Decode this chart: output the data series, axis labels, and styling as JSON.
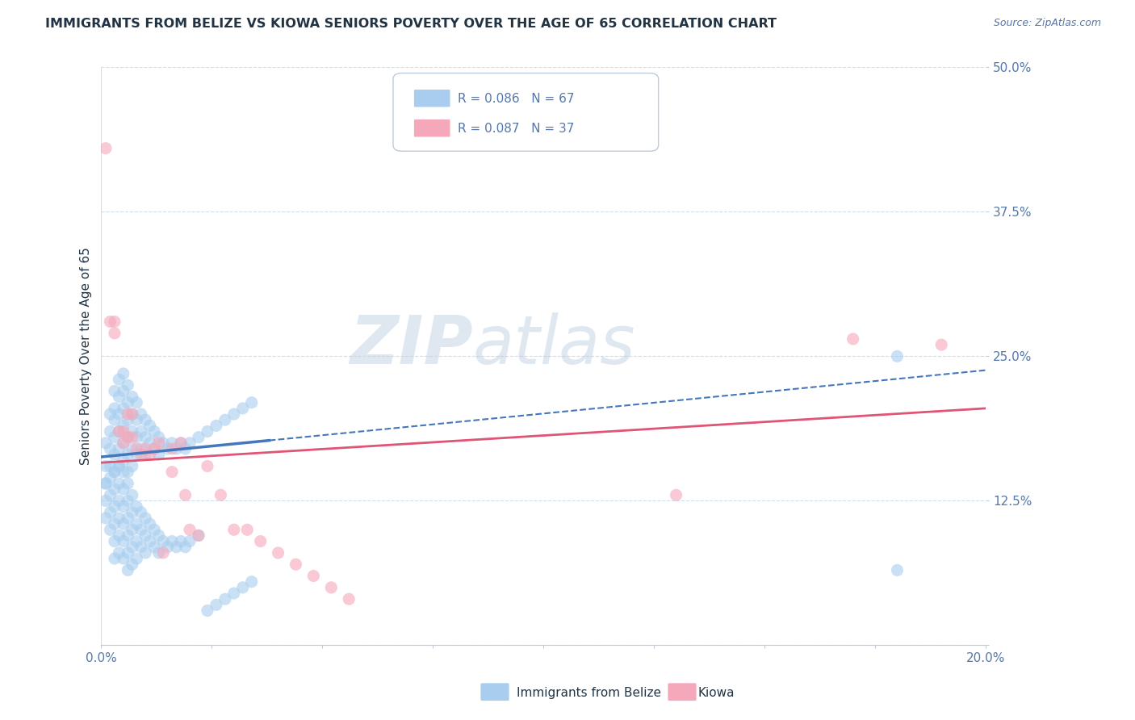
{
  "title": "IMMIGRANTS FROM BELIZE VS KIOWA SENIORS POVERTY OVER THE AGE OF 65 CORRELATION CHART",
  "source": "Source: ZipAtlas.com",
  "ylabel": "Seniors Poverty Over the Age of 65",
  "xlim": [
    0.0,
    0.2
  ],
  "ylim": [
    0.0,
    0.5
  ],
  "xticks": [
    0.0,
    0.025,
    0.05,
    0.075,
    0.1,
    0.125,
    0.15,
    0.175,
    0.2
  ],
  "xticklabels": [
    "0.0%",
    "",
    "",
    "",
    "",
    "",
    "",
    "",
    "20.0%"
  ],
  "yticks": [
    0.0,
    0.125,
    0.25,
    0.375,
    0.5
  ],
  "yticklabels": [
    "",
    "12.5%",
    "25.0%",
    "37.5%",
    "50.0%"
  ],
  "series1_label": "Immigrants from Belize",
  "series1_R": "R = 0.086",
  "series1_N": "N = 67",
  "series1_color": "#A8CDEF",
  "series1_line_color": "#4477BB",
  "series2_label": "Kiowa",
  "series2_R": "R = 0.087",
  "series2_N": "N = 37",
  "series2_color": "#F5A8BA",
  "series2_line_color": "#E05575",
  "watermark_top": "ZIP",
  "watermark_bot": "atlas",
  "watermark_color": "#C8D8E8",
  "title_color": "#223344",
  "axis_color": "#5577AA",
  "grid_color": "#CCDDEE",
  "series1_x": [
    0.001,
    0.001,
    0.001,
    0.002,
    0.002,
    0.002,
    0.002,
    0.003,
    0.003,
    0.003,
    0.003,
    0.003,
    0.003,
    0.004,
    0.004,
    0.004,
    0.004,
    0.004,
    0.004,
    0.005,
    0.005,
    0.005,
    0.005,
    0.005,
    0.005,
    0.006,
    0.006,
    0.006,
    0.006,
    0.006,
    0.006,
    0.007,
    0.007,
    0.007,
    0.007,
    0.007,
    0.008,
    0.008,
    0.008,
    0.008,
    0.009,
    0.009,
    0.009,
    0.01,
    0.01,
    0.01,
    0.011,
    0.011,
    0.012,
    0.012,
    0.013,
    0.013,
    0.014,
    0.015,
    0.016,
    0.017,
    0.018,
    0.019,
    0.02,
    0.022,
    0.024,
    0.026,
    0.028,
    0.03,
    0.032,
    0.034,
    0.18
  ],
  "series1_y": [
    0.175,
    0.155,
    0.14,
    0.2,
    0.185,
    0.17,
    0.155,
    0.22,
    0.205,
    0.195,
    0.18,
    0.165,
    0.15,
    0.23,
    0.215,
    0.2,
    0.185,
    0.17,
    0.155,
    0.235,
    0.22,
    0.205,
    0.19,
    0.175,
    0.16,
    0.225,
    0.21,
    0.195,
    0.18,
    0.165,
    0.15,
    0.215,
    0.2,
    0.185,
    0.17,
    0.155,
    0.21,
    0.195,
    0.18,
    0.165,
    0.2,
    0.185,
    0.17,
    0.195,
    0.18,
    0.165,
    0.19,
    0.175,
    0.185,
    0.17,
    0.18,
    0.165,
    0.175,
    0.17,
    0.175,
    0.17,
    0.175,
    0.17,
    0.175,
    0.18,
    0.185,
    0.19,
    0.195,
    0.2,
    0.205,
    0.21,
    0.25
  ],
  "series1_y_low": [
    0.14,
    0.125,
    0.11,
    0.145,
    0.13,
    0.115,
    0.1,
    0.15,
    0.135,
    0.12,
    0.105,
    0.09,
    0.075,
    0.155,
    0.14,
    0.125,
    0.11,
    0.095,
    0.08,
    0.15,
    0.135,
    0.12,
    0.105,
    0.09,
    0.075,
    0.14,
    0.125,
    0.11,
    0.095,
    0.08,
    0.065,
    0.13,
    0.115,
    0.1,
    0.085,
    0.07,
    0.12,
    0.105,
    0.09,
    0.075,
    0.115,
    0.1,
    0.085,
    0.11,
    0.095,
    0.08,
    0.105,
    0.09,
    0.1,
    0.085,
    0.095,
    0.08,
    0.09,
    0.085,
    0.09,
    0.085,
    0.09,
    0.085,
    0.09,
    0.095,
    0.03,
    0.035,
    0.04,
    0.045,
    0.05,
    0.055,
    0.065
  ],
  "series2_x": [
    0.001,
    0.002,
    0.003,
    0.003,
    0.004,
    0.005,
    0.005,
    0.006,
    0.006,
    0.007,
    0.007,
    0.008,
    0.009,
    0.01,
    0.011,
    0.012,
    0.013,
    0.014,
    0.016,
    0.016,
    0.018,
    0.019,
    0.02,
    0.022,
    0.024,
    0.027,
    0.03,
    0.033,
    0.036,
    0.04,
    0.044,
    0.048,
    0.052,
    0.056,
    0.13,
    0.17,
    0.19
  ],
  "series2_y": [
    0.43,
    0.28,
    0.28,
    0.27,
    0.185,
    0.185,
    0.175,
    0.2,
    0.18,
    0.2,
    0.18,
    0.17,
    0.165,
    0.17,
    0.165,
    0.17,
    0.175,
    0.08,
    0.15,
    0.17,
    0.175,
    0.13,
    0.1,
    0.095,
    0.155,
    0.13,
    0.1,
    0.1,
    0.09,
    0.08,
    0.07,
    0.06,
    0.05,
    0.04,
    0.13,
    0.265,
    0.26
  ],
  "trend1_x0": 0.0,
  "trend1_y0": 0.163,
  "trend1_x1": 0.2,
  "trend1_y1": 0.238,
  "trend2_x0": 0.0,
  "trend2_y0": 0.158,
  "trend2_x1": 0.2,
  "trend2_y1": 0.205
}
